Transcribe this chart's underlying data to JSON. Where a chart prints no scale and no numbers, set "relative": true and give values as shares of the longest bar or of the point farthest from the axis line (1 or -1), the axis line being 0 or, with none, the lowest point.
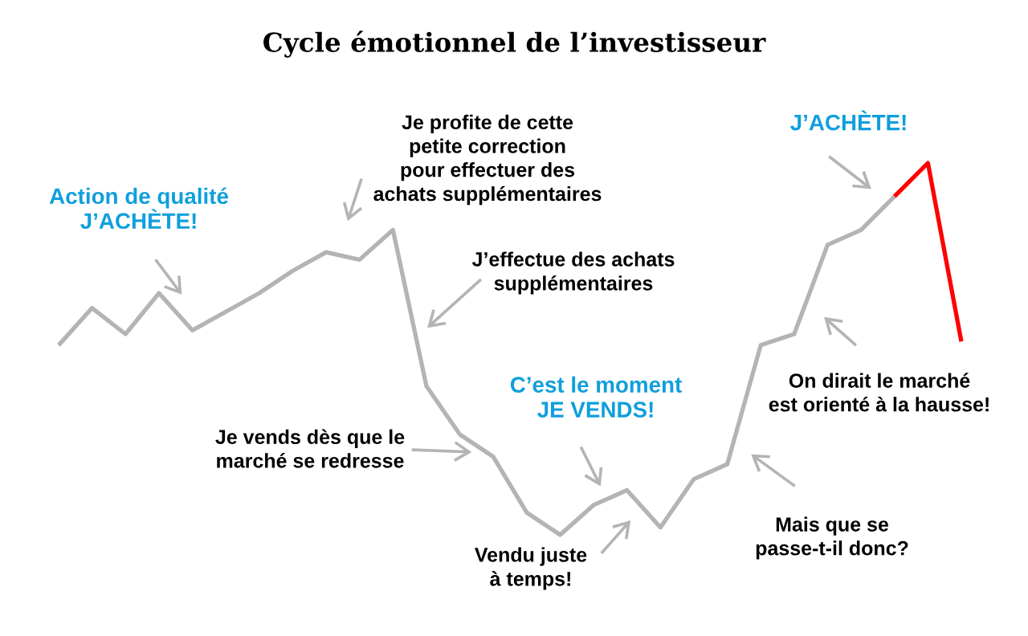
{
  "chart_data": {
    "type": "line",
    "title": "Cycle émotionnel de l’investisseur",
    "relative": true,
    "categories": [
      null,
      null,
      null,
      null,
      null,
      null,
      null,
      null,
      null,
      null,
      null,
      null,
      null,
      null,
      null,
      null,
      null,
      null,
      null,
      null,
      null,
      null,
      null,
      null,
      null,
      null,
      null,
      null
    ],
    "series": [
      {
        "color": "#b4b4b4",
        "values": [
          0.51,
          0.61,
          0.54,
          0.65,
          0.55,
          0.6,
          0.65,
          0.71,
          0.76,
          0.74,
          0.82,
          0.4,
          0.27,
          0.21,
          0.06,
          0.0,
          0.08,
          0.12,
          0.02,
          0.15,
          0.19,
          0.51,
          0.54,
          0.78,
          0.82,
          0.91,
          null,
          null
        ]
      },
      {
        "color": "#ff0000",
        "values": [
          null,
          null,
          null,
          null,
          null,
          null,
          null,
          null,
          null,
          null,
          null,
          null,
          null,
          null,
          null,
          null,
          null,
          null,
          null,
          null,
          null,
          null,
          null,
          null,
          null,
          0.91,
          1.0,
          0.52
        ]
      }
    ],
    "annotations": [
      "Action de qualité\nJ’ACHÈTE!",
      "Je profite de cette\npetite correction\npour effectuer des\nachats supplémentaires",
      "J’effectue des achats\nsupplémentaires",
      "Je vends dès que le\nmarché se redresse",
      "C’est le moment\nJE VENDS!",
      "Vendu juste\nà temps!",
      "Mais que se\npasse-t-il donc?",
      "On dirait le marché\nest orienté à la hausse!",
      "J’ACHÈTE!"
    ]
  }
}
